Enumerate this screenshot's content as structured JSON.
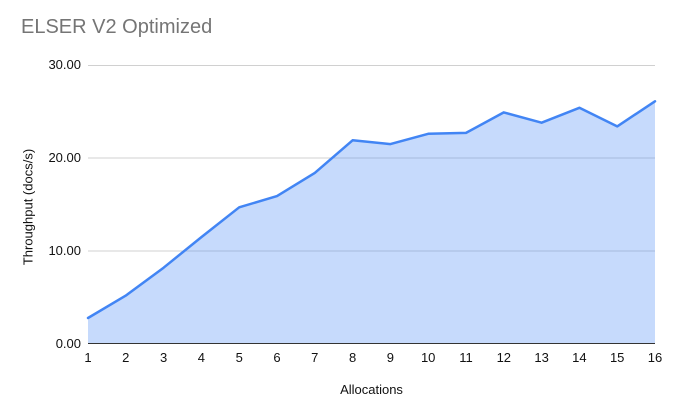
{
  "page": {
    "background": "#ffffff"
  },
  "chart_data": {
    "type": "area",
    "title": "ELSER V2 Optimized",
    "xlabel": "Allocations",
    "ylabel": "Throughput (docs/s)",
    "x": [
      1,
      2,
      3,
      4,
      5,
      6,
      7,
      8,
      9,
      10,
      11,
      12,
      13,
      14,
      15,
      16
    ],
    "values": [
      2.8,
      5.2,
      8.2,
      11.5,
      14.7,
      15.9,
      18.4,
      21.9,
      21.5,
      22.6,
      22.7,
      24.9,
      23.8,
      25.4,
      23.4,
      26.1
    ],
    "ylim": [
      0,
      30
    ],
    "yticks": [
      0,
      10,
      20,
      30
    ],
    "ytick_labels": [
      "0.00",
      "10.00",
      "20.00",
      "30.00"
    ],
    "grid": true,
    "legend": "none",
    "colors": {
      "line": "#4285f4",
      "fill_opacity": "0.3",
      "gridline": "#d0d0d0",
      "axis_line": "#333333",
      "title": "#757575",
      "labels": "#111111"
    }
  }
}
